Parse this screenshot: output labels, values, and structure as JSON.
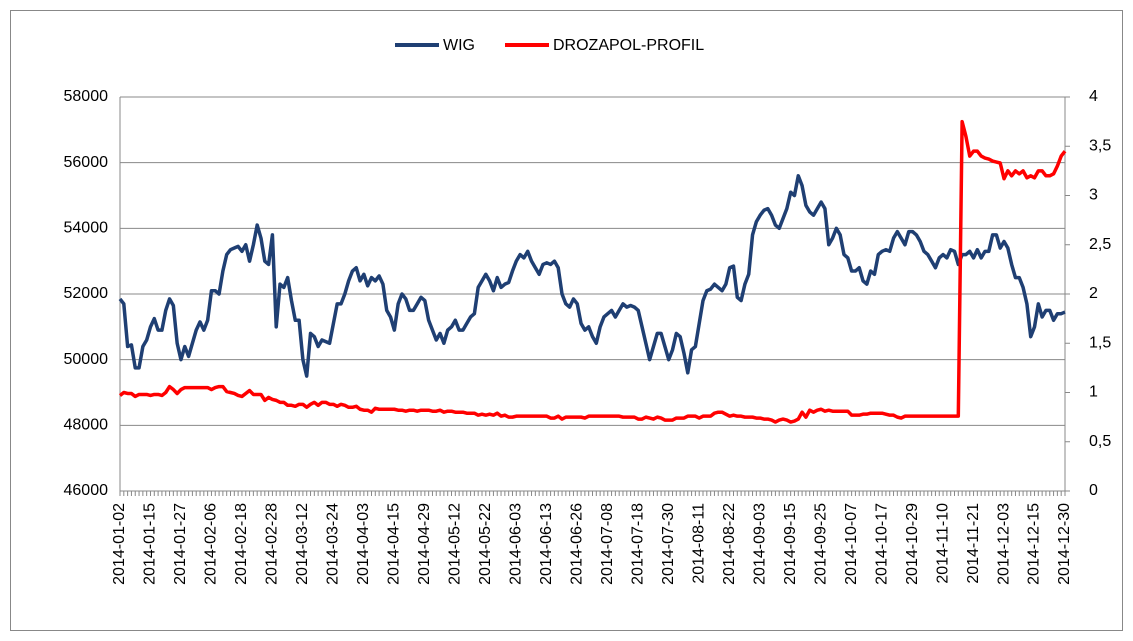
{
  "chart_data": {
    "type": "line",
    "categories": [
      "2014-01-02",
      null,
      null,
      null,
      null,
      null,
      null,
      null,
      "2014-01-15",
      null,
      null,
      null,
      null,
      null,
      null,
      null,
      "2014-01-27",
      null,
      null,
      null,
      null,
      null,
      null,
      null,
      "2014-02-06",
      null,
      null,
      null,
      null,
      null,
      null,
      null,
      "2014-02-18",
      null,
      null,
      null,
      null,
      null,
      null,
      null,
      "2014-02-28",
      null,
      null,
      null,
      null,
      null,
      null,
      null,
      "2014-03-12",
      null,
      null,
      null,
      null,
      null,
      null,
      null,
      "2014-03-24",
      null,
      null,
      null,
      null,
      null,
      null,
      null,
      "2014-04-03",
      null,
      null,
      null,
      null,
      null,
      null,
      null,
      "2014-04-15",
      null,
      null,
      null,
      null,
      null,
      null,
      null,
      "2014-04-29",
      null,
      null,
      null,
      null,
      null,
      null,
      null,
      "2014-05-12",
      null,
      null,
      null,
      null,
      null,
      null,
      null,
      "2014-05-22",
      null,
      null,
      null,
      null,
      null,
      null,
      null,
      "2014-06-03",
      null,
      null,
      null,
      null,
      null,
      null,
      null,
      "2014-06-13",
      null,
      null,
      null,
      null,
      null,
      null,
      null,
      "2014-06-26",
      null,
      null,
      null,
      null,
      null,
      null,
      null,
      "2014-07-08",
      null,
      null,
      null,
      null,
      null,
      null,
      null,
      "2014-07-18",
      null,
      null,
      null,
      null,
      null,
      null,
      null,
      "2014-07-30",
      null,
      null,
      null,
      null,
      null,
      null,
      null,
      "2014-08-11",
      null,
      null,
      null,
      null,
      null,
      null,
      null,
      "2014-08-22",
      null,
      null,
      null,
      null,
      null,
      null,
      null,
      "2014-09-03",
      null,
      null,
      null,
      null,
      null,
      null,
      null,
      "2014-09-15",
      null,
      null,
      null,
      null,
      null,
      null,
      null,
      "2014-09-25",
      null,
      null,
      null,
      null,
      null,
      null,
      null,
      "2014-10-07",
      null,
      null,
      null,
      null,
      null,
      null,
      null,
      "2014-10-17",
      null,
      null,
      null,
      null,
      null,
      null,
      null,
      "2014-10-29",
      null,
      null,
      null,
      null,
      null,
      null,
      null,
      "2014-11-10",
      null,
      null,
      null,
      null,
      null,
      null,
      null,
      "2014-11-21",
      null,
      null,
      null,
      null,
      null,
      null,
      null,
      "2014-12-03",
      null,
      null,
      null,
      null,
      null,
      null,
      null,
      "2014-12-15",
      null,
      null,
      null,
      null,
      null,
      null,
      null,
      "2014-12-30"
    ],
    "series": [
      {
        "name": "WIG",
        "color": "#1f3f73",
        "values": [
          51850,
          51700,
          50400,
          50450,
          49750,
          49750,
          50400,
          50600,
          51000,
          51250,
          50900,
          50900,
          51500,
          51850,
          51650,
          50500,
          50000,
          50400,
          50100,
          50500,
          50900,
          51150,
          50900,
          51200,
          52100,
          52100,
          52000,
          52700,
          53200,
          53350,
          53400,
          53450,
          53300,
          53500,
          53000,
          53500,
          54100,
          53700,
          53000,
          52900,
          53800,
          51000,
          52300,
          52200,
          52500,
          51800,
          51200,
          51200,
          50000,
          49500,
          50800,
          50700,
          50400,
          50600,
          50550,
          50500,
          51100,
          51700,
          51700,
          52000,
          52400,
          52700,
          52800,
          52400,
          52600,
          52250,
          52500,
          52400,
          52550,
          52300,
          51500,
          51300,
          50900,
          51700,
          52000,
          51850,
          51500,
          51500,
          51700,
          51900,
          51800,
          51200,
          50900,
          50600,
          50800,
          50500,
          50900,
          51000,
          51200,
          50900,
          50900,
          51100,
          51300,
          51400,
          52200,
          52400,
          52600,
          52400,
          52100,
          52500,
          52200,
          52300,
          52350,
          52700,
          53000,
          53200,
          53100,
          53300,
          53000,
          52800,
          52600,
          52900,
          52950,
          52900,
          53000,
          52800,
          52000,
          51700,
          51600,
          51850,
          51700,
          51100,
          50900,
          51000,
          50700,
          50500,
          51000,
          51300,
          51400,
          51500,
          51300,
          51500,
          51700,
          51600,
          51650,
          51600,
          51500,
          51000,
          50500,
          50000,
          50400,
          50800,
          50800,
          50400,
          50000,
          50300,
          50800,
          50700,
          50200,
          49600,
          50300,
          50400,
          51100,
          51800,
          52100,
          52150,
          52300,
          52200,
          52100,
          52300,
          52800,
          52850,
          51900,
          51800,
          52300,
          52600,
          53800,
          54200,
          54400,
          54550,
          54600,
          54400,
          54100,
          54000,
          54300,
          54600,
          55100,
          55000,
          55600,
          55300,
          54700,
          54500,
          54400,
          54600,
          54800,
          54600,
          53500,
          53700,
          54000,
          53800,
          53200,
          53100,
          52700,
          52700,
          52800,
          52400,
          52300,
          52700,
          52600,
          53200,
          53300,
          53350,
          53300,
          53700,
          53900,
          53700,
          53500,
          53900,
          53900,
          53800,
          53600,
          53300,
          53200,
          53000,
          52800,
          53100,
          53200,
          53100,
          53350,
          53300,
          52900,
          53200,
          53200,
          53300,
          53100,
          53350,
          53100,
          53300,
          53300,
          53800,
          53800,
          53400,
          53600,
          53400,
          52900,
          52500,
          52500,
          52200,
          51700,
          50700,
          51000,
          51700,
          51300,
          51500,
          51500,
          51200,
          51400,
          51400,
          51450
        ]
      },
      {
        "name": "DROZAPOL-PROFIL",
        "color": "#ff0000",
        "axis": "y2",
        "values": [
          0.97,
          1.0,
          0.99,
          0.99,
          0.96,
          0.98,
          0.98,
          0.98,
          0.97,
          0.98,
          0.98,
          0.97,
          1.0,
          1.06,
          1.03,
          0.99,
          1.03,
          1.05,
          1.05,
          1.05,
          1.05,
          1.05,
          1.05,
          1.05,
          1.03,
          1.05,
          1.06,
          1.06,
          1.01,
          1.0,
          0.99,
          0.97,
          0.96,
          0.99,
          1.02,
          0.98,
          0.98,
          0.98,
          0.92,
          0.95,
          0.93,
          0.92,
          0.9,
          0.9,
          0.87,
          0.87,
          0.86,
          0.88,
          0.88,
          0.85,
          0.88,
          0.9,
          0.87,
          0.9,
          0.9,
          0.88,
          0.88,
          0.86,
          0.88,
          0.87,
          0.85,
          0.85,
          0.86,
          0.83,
          0.82,
          0.82,
          0.8,
          0.84,
          0.83,
          0.83,
          0.83,
          0.83,
          0.83,
          0.82,
          0.82,
          0.81,
          0.82,
          0.82,
          0.81,
          0.82,
          0.82,
          0.82,
          0.81,
          0.81,
          0.82,
          0.8,
          0.81,
          0.81,
          0.8,
          0.8,
          0.8,
          0.79,
          0.79,
          0.79,
          0.77,
          0.78,
          0.77,
          0.78,
          0.77,
          0.79,
          0.76,
          0.77,
          0.75,
          0.75,
          0.76,
          0.76,
          0.76,
          0.76,
          0.76,
          0.76,
          0.76,
          0.76,
          0.76,
          0.74,
          0.74,
          0.76,
          0.73,
          0.75,
          0.75,
          0.75,
          0.75,
          0.75,
          0.74,
          0.76,
          0.76,
          0.76,
          0.76,
          0.76,
          0.76,
          0.76,
          0.76,
          0.76,
          0.75,
          0.75,
          0.75,
          0.75,
          0.73,
          0.73,
          0.75,
          0.74,
          0.73,
          0.75,
          0.74,
          0.72,
          0.72,
          0.72,
          0.74,
          0.74,
          0.74,
          0.76,
          0.76,
          0.76,
          0.74,
          0.76,
          0.76,
          0.76,
          0.79,
          0.8,
          0.8,
          0.78,
          0.76,
          0.77,
          0.76,
          0.76,
          0.75,
          0.75,
          0.75,
          0.74,
          0.74,
          0.73,
          0.73,
          0.72,
          0.7,
          0.72,
          0.73,
          0.72,
          0.7,
          0.71,
          0.73,
          0.8,
          0.75,
          0.82,
          0.8,
          0.82,
          0.83,
          0.81,
          0.82,
          0.81,
          0.81,
          0.81,
          0.81,
          0.81,
          0.77,
          0.77,
          0.77,
          0.78,
          0.78,
          0.79,
          0.79,
          0.79,
          0.79,
          0.78,
          0.77,
          0.77,
          0.75,
          0.74,
          0.76,
          0.76,
          0.76,
          0.76,
          0.76,
          0.76,
          0.76,
          0.76,
          0.76,
          0.76,
          0.76,
          0.76,
          0.76,
          0.76,
          0.76,
          3.75,
          3.6,
          3.4,
          3.45,
          3.45,
          3.4,
          3.38,
          3.37,
          3.35,
          3.34,
          3.33,
          3.17,
          3.25,
          3.2,
          3.25,
          3.22,
          3.25,
          3.18,
          3.2,
          3.18,
          3.25,
          3.25,
          3.2,
          3.2,
          3.22,
          3.3,
          3.4,
          3.45
        ]
      }
    ],
    "ylim": [
      46000,
      58000
    ],
    "yticks": [
      46000,
      48000,
      50000,
      52000,
      54000,
      56000,
      58000
    ],
    "y2lim": [
      0,
      4
    ],
    "y2ticks": [
      0,
      {
        "value": 0.5,
        "label": "0,5"
      },
      1,
      {
        "value": 1.5,
        "label": "1,5"
      },
      2,
      {
        "value": 2.5,
        "label": "2,5"
      },
      3,
      {
        "value": 3.5,
        "label": "3,5"
      },
      4
    ],
    "grid": true,
    "legend": "top"
  }
}
